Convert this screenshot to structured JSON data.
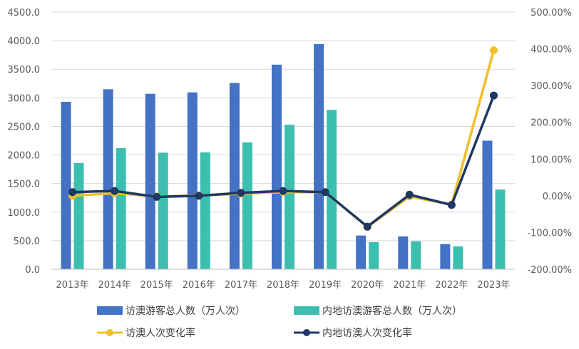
{
  "chart_data": {
    "type": "bar",
    "categories": [
      "2013年",
      "2014年",
      "2015年",
      "2016年",
      "2017年",
      "2018年",
      "2019年",
      "2020年",
      "2021年",
      "2022年",
      "2023年"
    ],
    "series": [
      {
        "name": "访澳游客总人数（万人次）",
        "type": "bar",
        "axis": "left",
        "color": "#4472c4",
        "values": [
          2930,
          3150,
          3070,
          3095,
          3260,
          3580,
          3940,
          590,
          575,
          440,
          2250
        ]
      },
      {
        "name": "内地访澳游客总人数（万人次）",
        "type": "bar",
        "axis": "left",
        "color": "#3dbfb0",
        "values": [
          1860,
          2120,
          2040,
          2045,
          2220,
          2530,
          2790,
          475,
          490,
          400,
          1395
        ]
      },
      {
        "name": "访澳人次变化率",
        "type": "line",
        "axis": "right",
        "color": "#f0c02a",
        "values": [
          0.0,
          7.0,
          -2.0,
          1.0,
          5.5,
          10.0,
          10.0,
          -85.0,
          -2.0,
          -24.0,
          396.0
        ]
      },
      {
        "name": "内地访澳人次变化率",
        "type": "line",
        "axis": "right",
        "color": "#1f3864",
        "values": [
          10.0,
          13.0,
          -3.0,
          0.0,
          8.0,
          13.0,
          10.0,
          -84.0,
          3.0,
          -25.0,
          273.0
        ]
      }
    ],
    "y_left": {
      "min": 0,
      "max": 4500,
      "ticks": [
        "0.0",
        "500.0",
        "1000.0",
        "1500.0",
        "2000.0",
        "2500.0",
        "3000.0",
        "3500.0",
        "4000.0",
        "4500.0"
      ]
    },
    "y_right": {
      "min": -200,
      "max": 500,
      "ticks": [
        "-200.00%",
        "-100.00%",
        "0.00%",
        "100.00%",
        "200.00%",
        "300.00%",
        "400.00%",
        "500.00%"
      ]
    },
    "grid": true,
    "legend_position": "bottom"
  }
}
